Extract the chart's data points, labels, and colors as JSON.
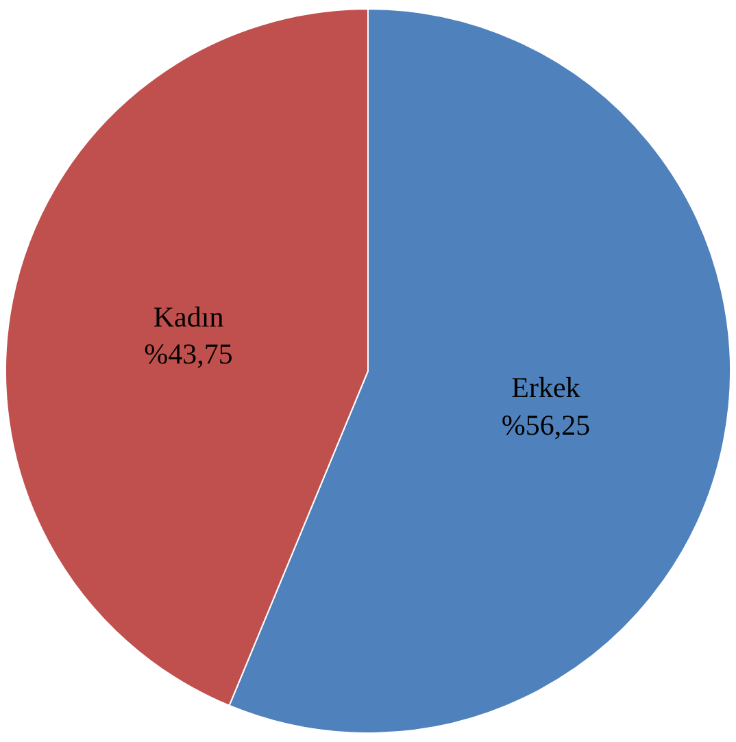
{
  "chart_data": {
    "type": "pie",
    "categories": [
      "Erkek",
      "Kadın"
    ],
    "values": [
      56.25,
      43.75
    ],
    "value_labels": [
      "%56,25",
      "%43,75"
    ],
    "colors": [
      "#4f81bd",
      "#c0504d"
    ],
    "legend": false
  }
}
